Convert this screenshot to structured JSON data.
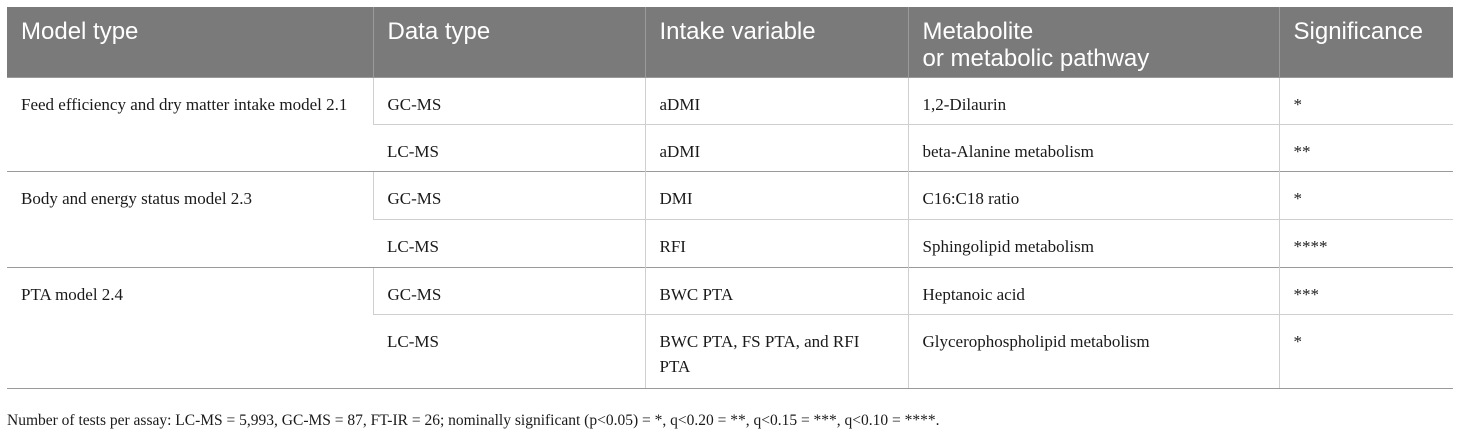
{
  "table": {
    "headers": [
      "Model type",
      "Data type",
      "Intake variable",
      "Metabolite or metabolic pathway",
      "Significance"
    ],
    "groups": [
      {
        "model": "Feed efficiency and dry matter intake model 2.1",
        "rows": [
          {
            "data_type": "GC-MS",
            "intake": "aDMI",
            "metabolite": "1,2-Dilaurin",
            "significance": "*"
          },
          {
            "data_type": "LC-MS",
            "intake": "aDMI",
            "metabolite": "beta-Alanine metabolism",
            "significance": "**"
          }
        ]
      },
      {
        "model": "Body and energy status model 2.3",
        "rows": [
          {
            "data_type": "GC-MS",
            "intake": "DMI",
            "metabolite": "C16:C18 ratio",
            "significance": "*"
          },
          {
            "data_type": "LC-MS",
            "intake": "RFI",
            "metabolite": "Sphingolipid metabolism",
            "significance": "****"
          }
        ]
      },
      {
        "model": "PTA model 2.4",
        "rows": [
          {
            "data_type": "GC-MS",
            "intake": "BWC PTA",
            "metabolite": "Heptanoic acid",
            "significance": "***"
          },
          {
            "data_type": "LC-MS",
            "intake": "BWC PTA, FS PTA, and RFI PTA",
            "metabolite": "Glycerophospholipid metabolism",
            "significance": "*"
          }
        ]
      }
    ]
  },
  "footnote": "Number of tests per assay: LC-MS = 5,993, GC-MS = 87, FT-IR = 26; nominally significant (p<0.05) = *, q<0.20 = **, q<0.15 = ***, q<0.10 = ****."
}
